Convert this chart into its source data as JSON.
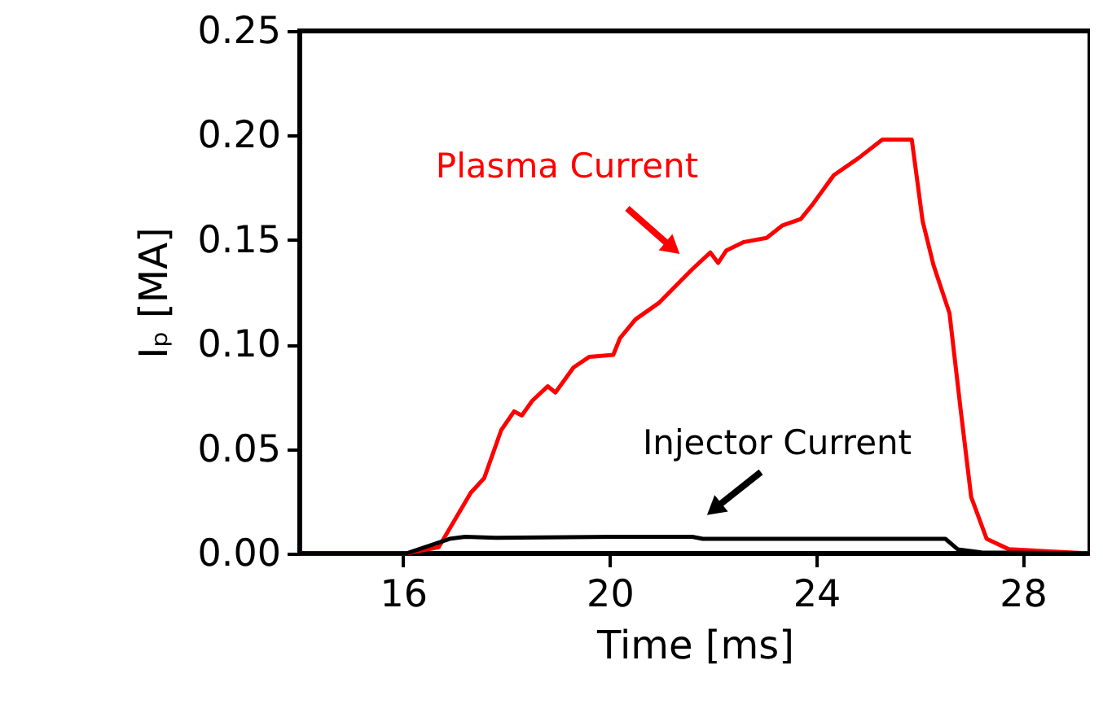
{
  "chart_data": {
    "type": "line",
    "xlabel": "Time [ms]",
    "ylabel": "Iₚ [MA]",
    "xlim": [
      14,
      29.3
    ],
    "xticks": [
      16,
      20,
      24,
      28
    ],
    "ylim": [
      0,
      0.25
    ],
    "yticks": [
      {
        "value": 0,
        "label": "0.00"
      },
      {
        "value": 0.05,
        "label": "0.05"
      },
      {
        "value": 0.1,
        "label": "0.10"
      },
      {
        "value": 0.15,
        "label": "0.15"
      },
      {
        "value": 0.2,
        "label": "0.20"
      },
      {
        "value": 0.25,
        "label": "0.25"
      }
    ],
    "grid": false,
    "marker": "none",
    "line_style": "solid",
    "series": [
      {
        "name": "Plasma Current",
        "color": "#ff0000",
        "x": [
          14,
          16.06,
          16.69,
          17.31,
          17.57,
          17.9,
          18.15,
          18.3,
          18.5,
          18.8,
          18.95,
          19.3,
          19.6,
          20.07,
          20.2,
          20.5,
          20.96,
          21.4,
          21.6,
          21.95,
          22.1,
          22.26,
          22.6,
          23.04,
          23.35,
          23.7,
          23.93,
          24.34,
          24.81,
          25.28,
          25.85,
          26.06,
          26.27,
          26.58,
          26.8,
          27.0,
          27.3,
          27.73,
          29.3
        ],
        "values": [
          0,
          0,
          0.003,
          0.029,
          0.036,
          0.059,
          0.068,
          0.066,
          0.073,
          0.08,
          0.077,
          0.089,
          0.094,
          0.095,
          0.103,
          0.112,
          0.12,
          0.131,
          0.136,
          0.144,
          0.139,
          0.145,
          0.149,
          0.151,
          0.157,
          0.16,
          0.167,
          0.181,
          0.189,
          0.198,
          0.198,
          0.159,
          0.138,
          0.115,
          0.068,
          0.027,
          0.007,
          0.002,
          0
        ]
      },
      {
        "name": "Injector Current",
        "color": "#000000",
        "x": [
          14,
          16.06,
          16.9,
          17.2,
          17.8,
          20.1,
          21.6,
          21.8,
          26.0,
          26.5,
          26.74,
          27.2,
          29.3
        ],
        "values": [
          0,
          0,
          0.007,
          0.008,
          0.0075,
          0.008,
          0.008,
          0.007,
          0.007,
          0.007,
          0.002,
          0.0005,
          0
        ]
      }
    ]
  }
}
